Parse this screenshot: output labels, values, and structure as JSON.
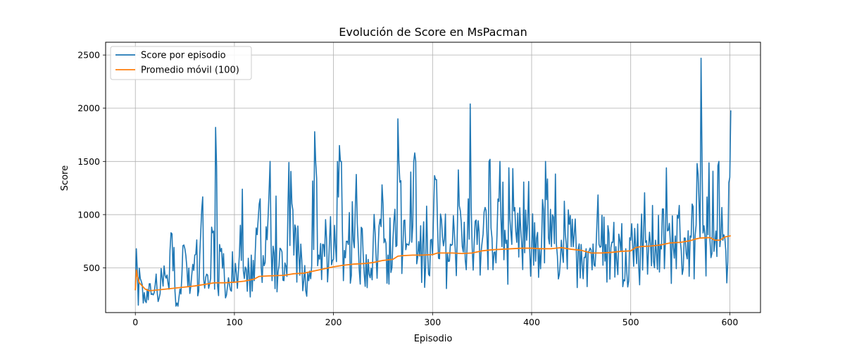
{
  "chart_data": {
    "type": "line",
    "title": "Evolución de Score en MsPacman",
    "xlabel": "Episodio",
    "ylabel": "Score",
    "xlim": [
      -30,
      631
    ],
    "ylim": [
      80,
      2620
    ],
    "xticks": [
      0,
      100,
      200,
      300,
      400,
      500,
      600
    ],
    "yticks": [
      500,
      1000,
      1500,
      2000,
      2500
    ],
    "grid": true,
    "legend_position": "top-left",
    "series": [
      {
        "name": "Score por episodio",
        "color": "#1f77b4",
        "style": "noisy",
        "anchors": [
          [
            0,
            290
          ],
          [
            1,
            680
          ],
          [
            3,
            150
          ],
          [
            5,
            400
          ],
          [
            8,
            170
          ],
          [
            12,
            300
          ],
          [
            16,
            250
          ],
          [
            20,
            340
          ],
          [
            25,
            260
          ],
          [
            30,
            430
          ],
          [
            34,
            300
          ],
          [
            36,
            830
          ],
          [
            40,
            280
          ],
          [
            45,
            300
          ],
          [
            50,
            680
          ],
          [
            55,
            260
          ],
          [
            60,
            620
          ],
          [
            64,
            280
          ],
          [
            67,
            1050
          ],
          [
            70,
            310
          ],
          [
            75,
            350
          ],
          [
            78,
            830
          ],
          [
            80,
            300
          ],
          [
            81,
            1820
          ],
          [
            83,
            330
          ],
          [
            85,
            720
          ],
          [
            90,
            380
          ],
          [
            95,
            340
          ],
          [
            100,
            370
          ],
          [
            105,
            620
          ],
          [
            108,
            1240
          ],
          [
            110,
            400
          ],
          [
            115,
            420
          ],
          [
            120,
            380
          ],
          [
            125,
            1100
          ],
          [
            130,
            520
          ],
          [
            135,
            1220
          ],
          [
            138,
            380
          ],
          [
            140,
            640
          ],
          [
            145,
            520
          ],
          [
            150,
            380
          ],
          [
            153,
            420
          ],
          [
            155,
            1490
          ],
          [
            160,
            620
          ],
          [
            165,
            640
          ],
          [
            170,
            380
          ],
          [
            174,
            450
          ],
          [
            178,
            520
          ],
          [
            181,
            1780
          ],
          [
            185,
            620
          ],
          [
            190,
            720
          ],
          [
            195,
            520
          ],
          [
            200,
            580
          ],
          [
            206,
            1650
          ],
          [
            210,
            380
          ],
          [
            215,
            720
          ],
          [
            220,
            760
          ],
          [
            225,
            720
          ],
          [
            230,
            620
          ],
          [
            235,
            580
          ],
          [
            240,
            720
          ],
          [
            245,
            670
          ],
          [
            250,
            1100
          ],
          [
            255,
            620
          ],
          [
            260,
            760
          ],
          [
            263,
            700
          ],
          [
            265,
            1900
          ],
          [
            270,
            680
          ],
          [
            275,
            720
          ],
          [
            280,
            900
          ],
          [
            282,
            1580
          ],
          [
            285,
            600
          ],
          [
            290,
            720
          ],
          [
            295,
            650
          ],
          [
            300,
            620
          ],
          [
            303,
            1330
          ],
          [
            306,
            590
          ],
          [
            310,
            790
          ],
          [
            315,
            640
          ],
          [
            320,
            720
          ],
          [
            325,
            840
          ],
          [
            330,
            700
          ],
          [
            335,
            760
          ],
          [
            338,
            2040
          ],
          [
            340,
            690
          ],
          [
            345,
            720
          ],
          [
            350,
            740
          ],
          [
            355,
            780
          ],
          [
            358,
            1520
          ],
          [
            360,
            780
          ],
          [
            365,
            800
          ],
          [
            368,
            1500
          ],
          [
            370,
            700
          ],
          [
            375,
            760
          ],
          [
            380,
            720
          ],
          [
            385,
            740
          ],
          [
            390,
            720
          ],
          [
            395,
            760
          ],
          [
            400,
            700
          ],
          [
            405,
            780
          ],
          [
            410,
            720
          ],
          [
            415,
            1140
          ],
          [
            420,
            700
          ],
          [
            425,
            720
          ],
          [
            430,
            760
          ],
          [
            435,
            720
          ],
          [
            440,
            700
          ],
          [
            445,
            690
          ],
          [
            450,
            720
          ],
          [
            455,
            680
          ],
          [
            460,
            670
          ],
          [
            465,
            680
          ],
          [
            470,
            700
          ],
          [
            475,
            720
          ],
          [
            480,
            690
          ],
          [
            485,
            700
          ],
          [
            490,
            660
          ],
          [
            495,
            680
          ],
          [
            500,
            760
          ],
          [
            505,
            700
          ],
          [
            510,
            720
          ],
          [
            515,
            740
          ],
          [
            520,
            720
          ],
          [
            525,
            760
          ],
          [
            530,
            720
          ],
          [
            535,
            760
          ],
          [
            540,
            740
          ],
          [
            545,
            800
          ],
          [
            550,
            760
          ],
          [
            555,
            780
          ],
          [
            560,
            800
          ],
          [
            565,
            800
          ],
          [
            570,
            780
          ],
          [
            571,
            2470
          ],
          [
            575,
            800
          ],
          [
            580,
            760
          ],
          [
            585,
            740
          ],
          [
            588,
            1460
          ],
          [
            590,
            700
          ],
          [
            595,
            780
          ],
          [
            598,
            560
          ],
          [
            599,
            1300
          ],
          [
            600,
            1350
          ],
          [
            601,
            1980
          ]
        ]
      },
      {
        "name": "Promedio móvil (100)",
        "color": "#ff7f0e",
        "style": "smooth",
        "points": [
          [
            0,
            290
          ],
          [
            1,
            480
          ],
          [
            2,
            420
          ],
          [
            4,
            360
          ],
          [
            7,
            330
          ],
          [
            10,
            300
          ],
          [
            14,
            285
          ],
          [
            20,
            290
          ],
          [
            30,
            300
          ],
          [
            40,
            310
          ],
          [
            50,
            320
          ],
          [
            60,
            330
          ],
          [
            70,
            345
          ],
          [
            80,
            360
          ],
          [
            90,
            360
          ],
          [
            100,
            365
          ],
          [
            110,
            375
          ],
          [
            120,
            395
          ],
          [
            125,
            420
          ],
          [
            135,
            425
          ],
          [
            150,
            430
          ],
          [
            160,
            445
          ],
          [
            170,
            450
          ],
          [
            180,
            470
          ],
          [
            190,
            490
          ],
          [
            200,
            510
          ],
          [
            210,
            525
          ],
          [
            220,
            535
          ],
          [
            230,
            540
          ],
          [
            240,
            550
          ],
          [
            250,
            570
          ],
          [
            260,
            580
          ],
          [
            265,
            610
          ],
          [
            270,
            615
          ],
          [
            280,
            620
          ],
          [
            290,
            620
          ],
          [
            300,
            625
          ],
          [
            305,
            640
          ],
          [
            310,
            640
          ],
          [
            320,
            640
          ],
          [
            330,
            635
          ],
          [
            340,
            640
          ],
          [
            350,
            660
          ],
          [
            360,
            670
          ],
          [
            370,
            675
          ],
          [
            380,
            680
          ],
          [
            390,
            685
          ],
          [
            400,
            685
          ],
          [
            410,
            680
          ],
          [
            420,
            680
          ],
          [
            430,
            690
          ],
          [
            440,
            675
          ],
          [
            450,
            665
          ],
          [
            460,
            640
          ],
          [
            470,
            640
          ],
          [
            480,
            645
          ],
          [
            490,
            655
          ],
          [
            500,
            660
          ],
          [
            505,
            690
          ],
          [
            510,
            700
          ],
          [
            520,
            705
          ],
          [
            530,
            715
          ],
          [
            540,
            735
          ],
          [
            550,
            740
          ],
          [
            560,
            755
          ],
          [
            565,
            770
          ],
          [
            570,
            780
          ],
          [
            580,
            785
          ],
          [
            585,
            760
          ],
          [
            590,
            760
          ],
          [
            595,
            790
          ],
          [
            600,
            800
          ],
          [
            601,
            800
          ]
        ]
      }
    ]
  }
}
